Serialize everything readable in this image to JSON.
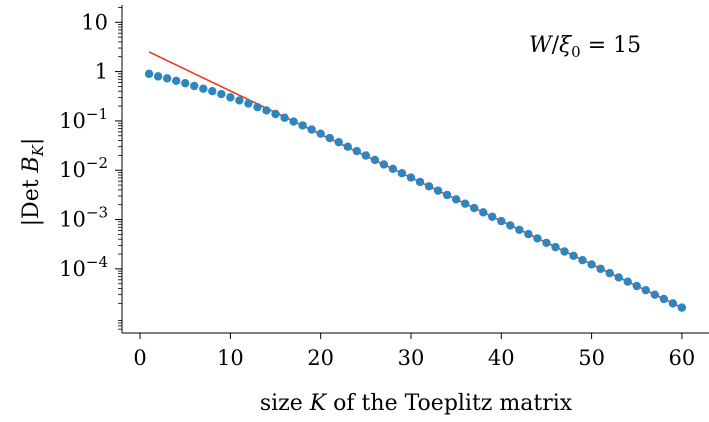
{
  "chart_data": {
    "type": "scatter",
    "annotation": "W/ξ₀ = 15",
    "xlabel_text": "size ",
    "xlabel_var": "K",
    "xlabel_rest": " of the Toeplitz matrix",
    "ylabel": "|Det B_K|",
    "xlim": [
      -2,
      63
    ],
    "ylim_log10": [
      -5.3,
      1.35
    ],
    "x_ticks": [
      0,
      10,
      20,
      30,
      40,
      50,
      60
    ],
    "x_tick_labels": [
      "0",
      "10",
      "20",
      "30",
      "40",
      "50",
      "60"
    ],
    "y_ticks_log10": [
      1,
      0,
      -1,
      -2,
      -3,
      -4
    ],
    "y_tick_labels": [
      "10",
      "1",
      "10⁻¹",
      "10⁻²",
      "10⁻³",
      "10⁻⁴"
    ],
    "series": [
      {
        "kind": "points",
        "color": "#2e86c1",
        "x": [
          1,
          2,
          3,
          4,
          5,
          6,
          7,
          8,
          9,
          10,
          11,
          12,
          13,
          14,
          15,
          16,
          17,
          18,
          19,
          20,
          21,
          22,
          23,
          24,
          25,
          26,
          27,
          28,
          29,
          30,
          31,
          32,
          33,
          34,
          35,
          36,
          37,
          38,
          39,
          40,
          41,
          42,
          43,
          44,
          45,
          46,
          47,
          48,
          49,
          50,
          51,
          52,
          53,
          54,
          55,
          56,
          57,
          58,
          59,
          60
        ],
        "y": [
          0.9,
          0.8,
          0.73,
          0.65,
          0.58,
          0.51,
          0.45,
          0.4,
          0.35,
          0.3,
          0.26,
          0.225,
          0.19,
          0.163,
          0.138,
          0.116,
          0.097,
          0.081,
          0.067,
          0.055,
          0.045,
          0.037,
          0.03,
          0.0245,
          0.0199,
          0.0162,
          0.0131,
          0.0107,
          0.0087,
          0.0071,
          0.0058,
          0.00473,
          0.00385,
          0.00315,
          0.00257,
          0.0021,
          0.00171,
          0.0014,
          0.00114,
          0.00093,
          0.00076,
          0.00062,
          0.000507,
          0.000414,
          0.000338,
          0.000276,
          0.000225,
          0.000184,
          0.00015,
          0.000123,
          0.0001,
          8.2e-05,
          6.7e-05,
          5.5e-05,
          4.5e-05,
          3.7e-05,
          3e-05,
          2.45e-05,
          2e-05,
          1.64e-05
        ]
      },
      {
        "kind": "line",
        "color": "#e8391d",
        "x": [
          1,
          60
        ],
        "y": [
          2.5,
          1.64e-05
        ]
      }
    ]
  }
}
